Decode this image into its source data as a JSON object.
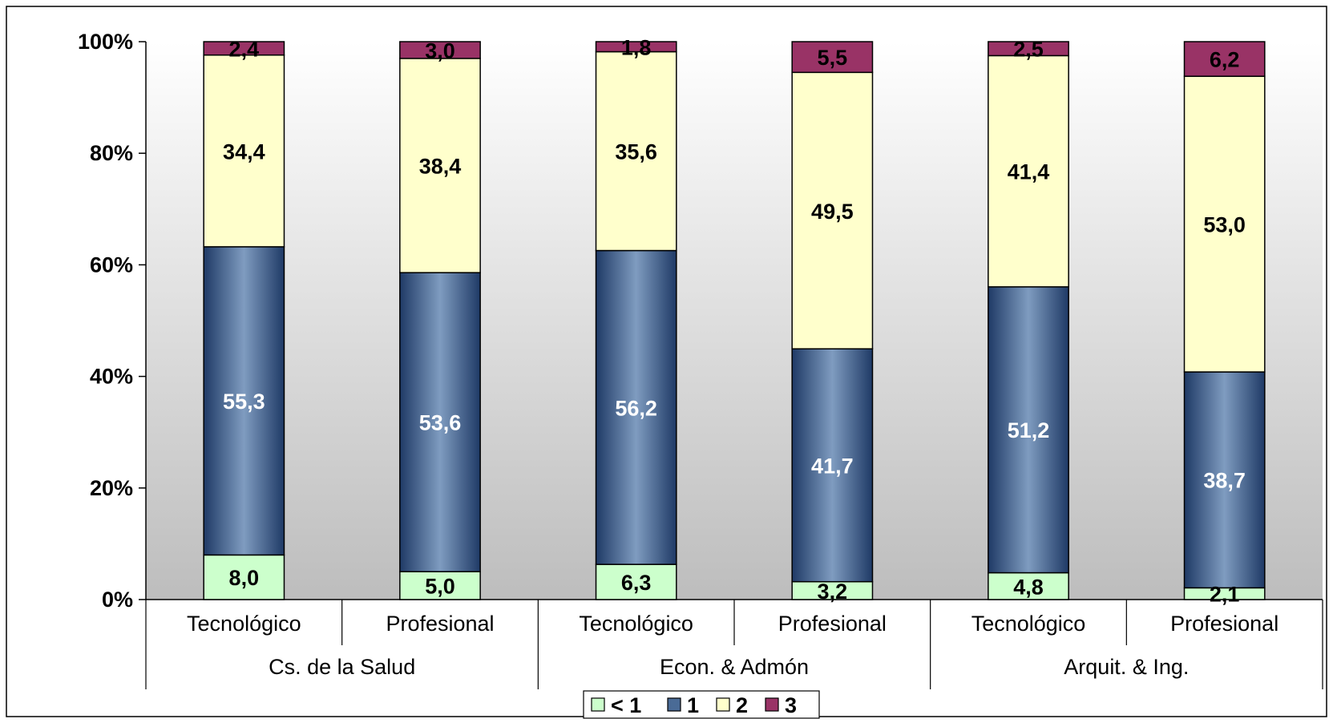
{
  "chart_data": {
    "type": "bar",
    "stacked": "percent",
    "categories": [
      "Tecnológico",
      "Profesional",
      "Tecnológico",
      "Profesional",
      "Tecnológico",
      "Profesional"
    ],
    "groups": [
      {
        "label": "Cs. de la Salud",
        "span": 2
      },
      {
        "label": "Econ. & Admón",
        "span": 2
      },
      {
        "label": "Arquit. & Ing.",
        "span": 2
      }
    ],
    "series": [
      {
        "name": "< 1",
        "color": "#ccffcc",
        "label_color": "#000000",
        "values": [
          8.0,
          5.0,
          6.3,
          3.2,
          4.8,
          2.1
        ],
        "labels": [
          "8,0",
          "5,0",
          "6,3",
          "3,2",
          "4,8",
          "2,1"
        ]
      },
      {
        "name": "1",
        "color": "#4a6b96",
        "label_color": "#ffffff",
        "values": [
          55.3,
          53.6,
          56.2,
          41.7,
          51.2,
          38.7
        ],
        "labels": [
          "55,3",
          "53,6",
          "56,2",
          "41,7",
          "51,2",
          "38,7"
        ]
      },
      {
        "name": "2",
        "color": "#ffffcc",
        "label_color": "#000000",
        "values": [
          34.4,
          38.4,
          35.6,
          49.5,
          41.4,
          53.0
        ],
        "labels": [
          "34,4",
          "38,4",
          "35,6",
          "49,5",
          "41,4",
          "53,0"
        ]
      },
      {
        "name": "3",
        "color": "#993366",
        "label_color": "#000000",
        "values": [
          2.4,
          3.0,
          1.8,
          5.5,
          2.5,
          6.2
        ],
        "labels": [
          "2,4",
          "3,0",
          "1,8",
          "5,5",
          "2,5",
          "6,2"
        ]
      }
    ],
    "yticks": [
      "0%",
      "20%",
      "40%",
      "60%",
      "80%",
      "100%"
    ],
    "ylim": [
      0,
      100
    ],
    "legend_position": "bottom",
    "grid": false,
    "plot_background": "gradient white to gray"
  }
}
